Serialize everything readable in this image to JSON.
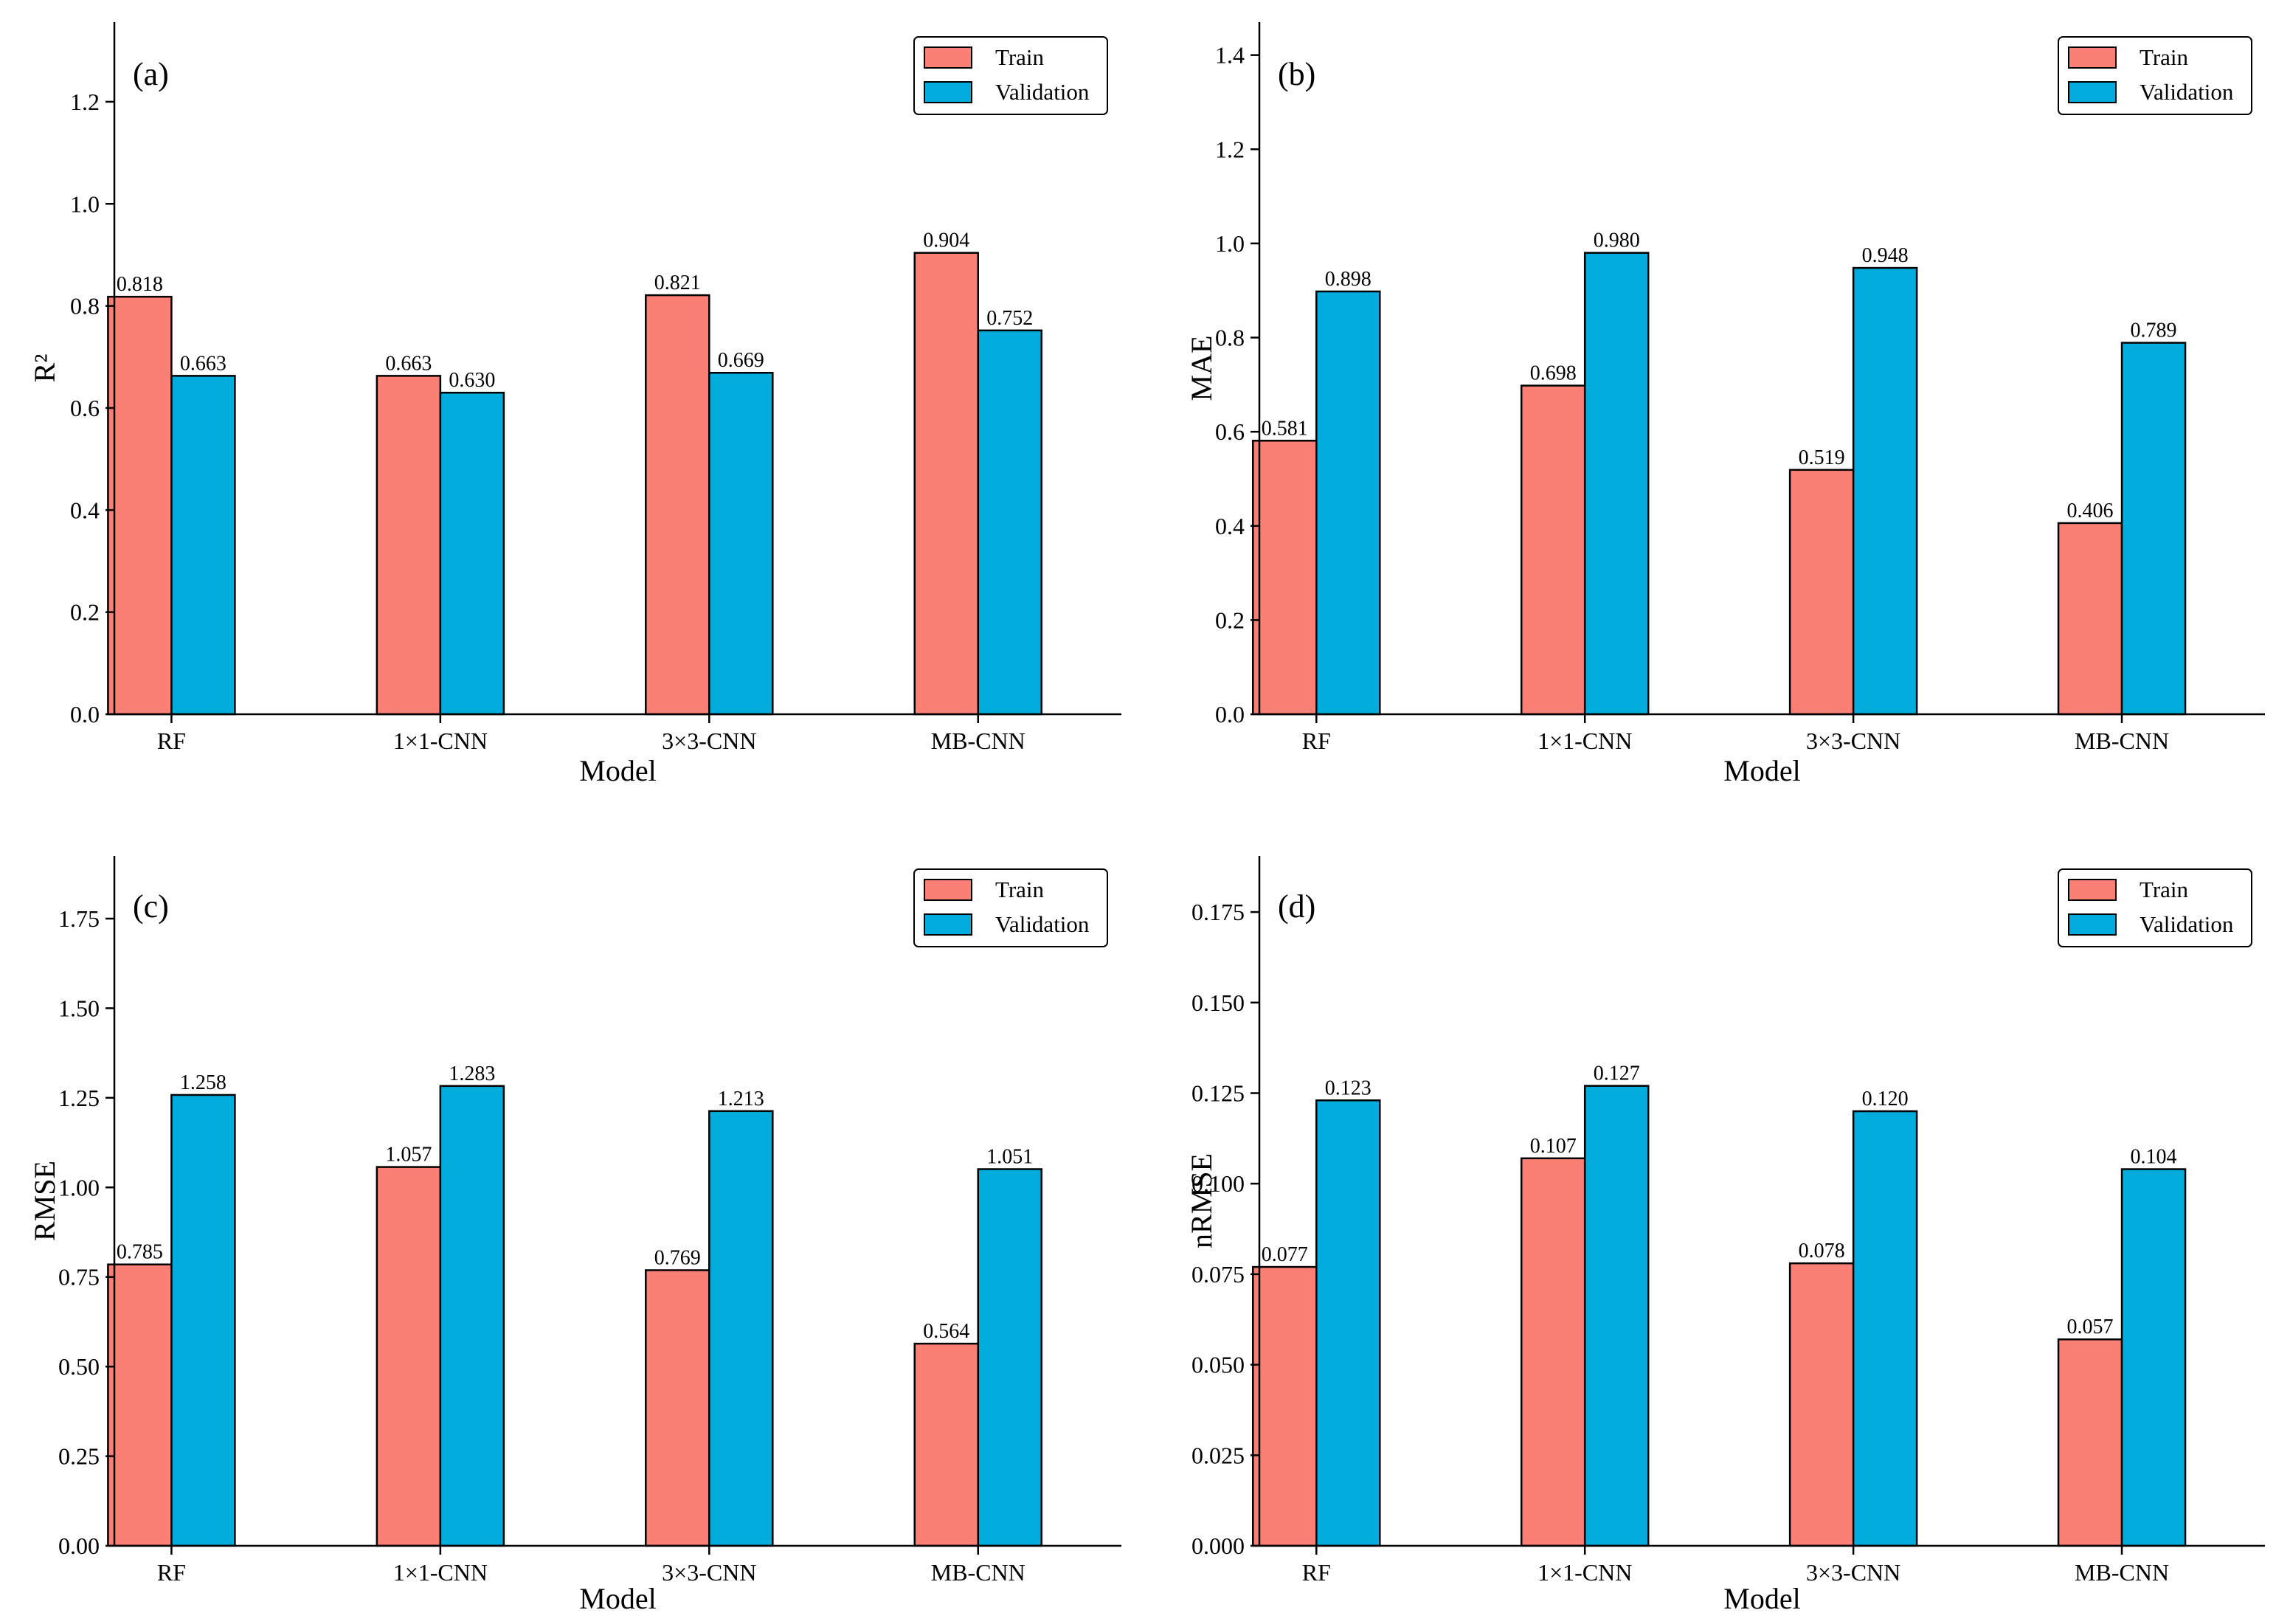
{
  "colors": {
    "train": "#fa7f74",
    "validation": "#00acdb",
    "axis": "#000000",
    "edge": "#000000"
  },
  "chart_data": [
    {
      "type": "bar",
      "panel": "(a)",
      "categories": [
        "RF",
        "1×1-CNN",
        "3×3-CNN",
        "MB-CNN"
      ],
      "series": [
        {
          "name": "Train",
          "values": [
            0.818,
            0.663,
            0.821,
            0.904
          ]
        },
        {
          "name": "Validation",
          "values": [
            0.663,
            0.63,
            0.669,
            0.752
          ]
        }
      ],
      "value_labels": [
        [
          "0.818",
          "0.663",
          "0.821",
          "0.904"
        ],
        [
          "0.663",
          "0.630",
          "0.669",
          "0.752"
        ]
      ],
      "xlabel": "Model",
      "ylabel": "R²",
      "ylim": [
        0,
        1.356
      ],
      "yticks": [
        0.0,
        0.2,
        0.4,
        0.6,
        0.8,
        1.0,
        1.2
      ],
      "ytick_labels": [
        "0.0",
        "0.2",
        "0.4",
        "0.6",
        "0.8",
        "1.0",
        "1.2"
      ],
      "legend": "top-right",
      "grid": false
    },
    {
      "type": "bar",
      "panel": "(b)",
      "categories": [
        "RF",
        "1×1-CNN",
        "3×3-CNN",
        "MB-CNN"
      ],
      "series": [
        {
          "name": "Train",
          "values": [
            0.581,
            0.698,
            0.519,
            0.406
          ]
        },
        {
          "name": "Validation",
          "values": [
            0.898,
            0.98,
            0.948,
            0.789
          ]
        }
      ],
      "value_labels": [
        [
          "0.581",
          "0.698",
          "0.519",
          "0.406"
        ],
        [
          "0.898",
          "0.980",
          "0.948",
          "0.789"
        ]
      ],
      "xlabel": "Model",
      "ylabel": "MAE",
      "ylim": [
        0,
        1.47
      ],
      "yticks": [
        0.0,
        0.2,
        0.4,
        0.6,
        0.8,
        1.0,
        1.2,
        1.4
      ],
      "ytick_labels": [
        "0.0",
        "0.2",
        "0.4",
        "0.6",
        "0.8",
        "1.0",
        "1.2",
        "1.4"
      ],
      "legend": "top-right",
      "grid": false
    },
    {
      "type": "bar",
      "panel": "(c)",
      "categories": [
        "RF",
        "1×1-CNN",
        "3×3-CNN",
        "MB-CNN"
      ],
      "series": [
        {
          "name": "Train",
          "values": [
            0.785,
            1.057,
            0.769,
            0.564
          ]
        },
        {
          "name": "Validation",
          "values": [
            1.258,
            1.283,
            1.213,
            1.051
          ]
        }
      ],
      "value_labels": [
        [
          "0.785",
          "1.057",
          "0.769",
          "0.564"
        ],
        [
          "1.258",
          "1.283",
          "1.213",
          "1.051"
        ]
      ],
      "xlabel": "Model",
      "ylabel": "RMSE",
      "ylim": [
        0,
        1.925
      ],
      "yticks": [
        0.0,
        0.25,
        0.5,
        0.75,
        1.0,
        1.25,
        1.5,
        1.75
      ],
      "ytick_labels": [
        "0.00",
        "0.25",
        "0.50",
        "0.75",
        "1.00",
        "1.25",
        "1.50",
        "1.75"
      ],
      "legend": "top-right",
      "grid": false
    },
    {
      "type": "bar",
      "panel": "(d)",
      "categories": [
        "RF",
        "1×1-CNN",
        "3×3-CNN",
        "MB-CNN"
      ],
      "series": [
        {
          "name": "Train",
          "values": [
            0.077,
            0.107,
            0.078,
            0.057
          ]
        },
        {
          "name": "Validation",
          "values": [
            0.123,
            0.127,
            0.12,
            0.104
          ]
        }
      ],
      "value_labels": [
        [
          "0.077",
          "0.107",
          "0.078",
          "0.057"
        ],
        [
          "0.123",
          "0.127",
          "0.120",
          "0.104]"
        ]
      ],
      "xlabel": "Model",
      "ylabel": "nRMSE",
      "ylim": [
        0,
        0.1905
      ],
      "yticks": [
        0.0,
        0.025,
        0.05,
        0.075,
        0.1,
        0.125,
        0.15,
        0.175
      ],
      "ytick_labels": [
        "0.000",
        "0.025",
        "0.050",
        "0.075",
        "0.100",
        "0.125",
        "0.150",
        "0.175"
      ],
      "legend": "top-right",
      "grid": false
    }
  ]
}
